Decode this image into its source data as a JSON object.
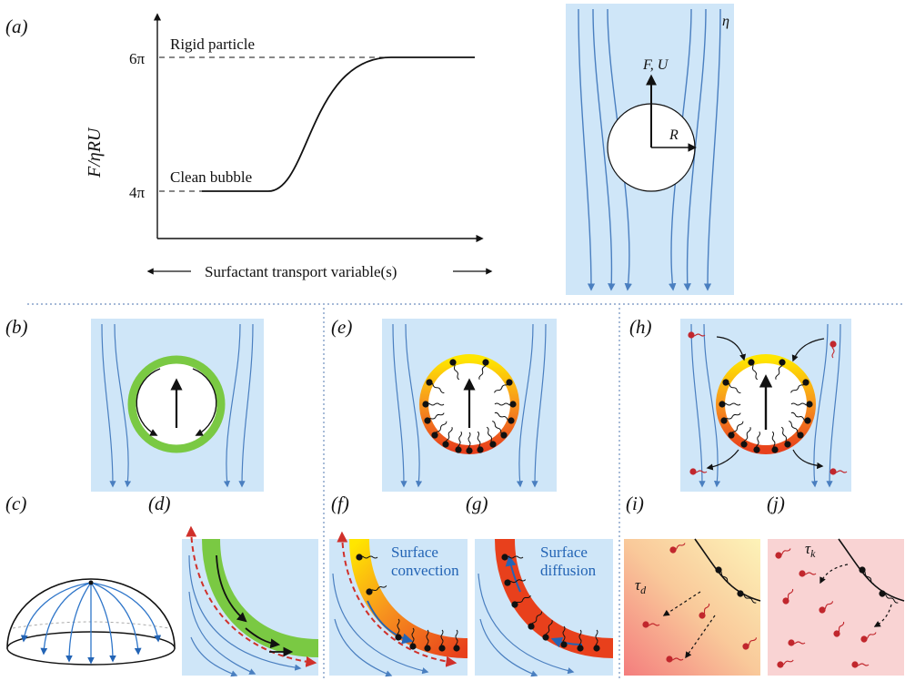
{
  "panels": {
    "a": "(a)",
    "b": "(b)",
    "c": "(c)",
    "d": "(d)",
    "e": "(e)",
    "f": "(f)",
    "g": "(g)",
    "h": "(h)",
    "i": "(i)",
    "j": "(j)"
  },
  "plot_a": {
    "y_axis_label": "F/ηRU",
    "y_tick_top": "6π",
    "y_tick_bottom": "4π",
    "rigid_label": "Rigid particle",
    "clean_label": "Clean bubble",
    "x_axis_label": "Surfactant transport variable(s)"
  },
  "flow_panel": {
    "viscosity": "η",
    "force_velocity": "F, U",
    "radius": "R"
  },
  "panel_f": {
    "text_line1": "Surface",
    "text_line2": "convection"
  },
  "panel_g": {
    "text_line1": "Surface",
    "text_line2": "diffusion"
  },
  "panel_i": {
    "tau": "τ",
    "tau_sub": "d"
  },
  "panel_j": {
    "tau": "τ",
    "tau_sub": "k"
  },
  "colors": {
    "fluid_bg": "#cfe6f8",
    "streamline": "#4a7fc0",
    "clean_ring": "#7ac943",
    "surfactant_gradient": [
      "#ffe600",
      "#f7931e",
      "#e8401c"
    ],
    "red_arrow": "#d0302a",
    "blue_arrow": "#2364b5",
    "divider": "#6f8fbf"
  }
}
